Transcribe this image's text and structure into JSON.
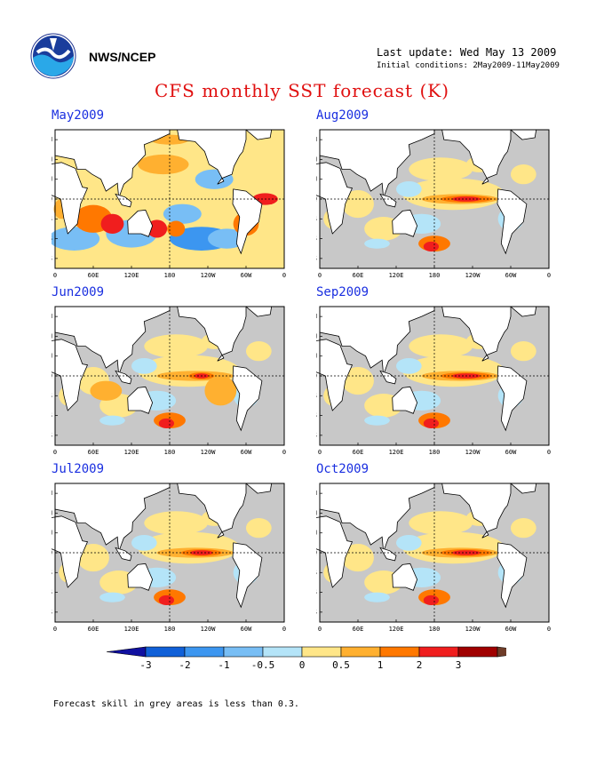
{
  "header": {
    "org": "NWS/NCEP",
    "last_update": "Last update: Wed May 13 2009",
    "initial_conditions": "Initial conditions: 2May2009-11May2009",
    "title": "CFS monthly SST forecast (K)"
  },
  "axes": {
    "lat_labels": [
      "60N",
      "40N",
      "20N",
      "EQ",
      "20S",
      "40S",
      "60S"
    ],
    "lon_labels": [
      "0",
      "60E",
      "120E",
      "180",
      "120W",
      "60W",
      "0"
    ]
  },
  "panels": [
    {
      "title": "May2009",
      "anomaly": "warm-widespread"
    },
    {
      "title": "Aug2009",
      "anomaly": "el-nino-developing"
    },
    {
      "title": "Jun2009",
      "anomaly": "warm-mixed"
    },
    {
      "title": "Sep2009",
      "anomaly": "el-nino-developing"
    },
    {
      "title": "Jul2009",
      "anomaly": "el-nino-onset"
    },
    {
      "title": "Oct2009",
      "anomaly": "el-nino-strong"
    }
  ],
  "colorbar": {
    "ticks": [
      "-3",
      "-2",
      "-1",
      "-0.5",
      "0",
      "0.5",
      "1",
      "2",
      "3"
    ],
    "colors": [
      "#1010a0",
      "#1060d8",
      "#3c96f0",
      "#78bef5",
      "#b4e4f8",
      "#ffe688",
      "#ffb030",
      "#ff7800",
      "#f01e1e",
      "#a00000",
      "#6e3c28"
    ]
  },
  "footnote": "Forecast skill in grey areas is less than 0.3.",
  "legend_colors": {
    "grey": "#c8c8c8",
    "land": "#ffffff",
    "title": "#e01010",
    "panel_title": "#1a2fe0"
  }
}
